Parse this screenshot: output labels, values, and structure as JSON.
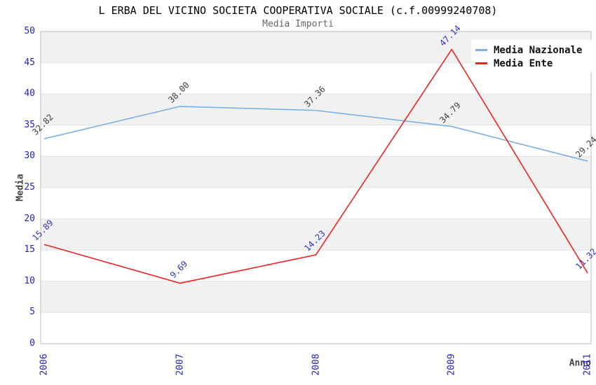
{
  "chart_data": {
    "type": "line",
    "title": "L ERBA DEL VICINO SOCIETA COOPERATIVA SOCIALE (c.f.00999240708)",
    "subtitle": "Media Importi",
    "xlabel": "Anno",
    "ylabel": "Media",
    "categories": [
      "2006",
      "2007",
      "2008",
      "2009",
      "2011"
    ],
    "series": [
      {
        "name": "Media Nazionale",
        "values": [
          32.82,
          38.0,
          37.36,
          34.79,
          29.24
        ],
        "labels": [
          "32.82",
          "38.00",
          "37.36",
          "34.79",
          "29.24"
        ],
        "color": "#7db0e3",
        "label_color": "#404040"
      },
      {
        "name": "Media Ente",
        "values": [
          15.89,
          9.69,
          14.23,
          47.14,
          11.32
        ],
        "labels": [
          "15.89",
          "9.69",
          "14.23",
          "47.14",
          "11.32"
        ],
        "color": "#ee2222",
        "label_color": "#2a35c4"
      }
    ],
    "ylim": [
      0,
      50
    ],
    "ytick_step": 5,
    "yticks": [
      "0",
      "5",
      "10",
      "15",
      "20",
      "25",
      "30",
      "35",
      "40",
      "45",
      "50"
    ],
    "grid": true,
    "legend_position": "top-right",
    "colors": {
      "tick_text": "#2222cc",
      "band_fill": "#f1f1f1",
      "gridline": "#e4e4e4",
      "plot_border": "#bdbdbd",
      "axis_title": "#444444",
      "title_text": "#000000",
      "subtitle_text": "#666666",
      "legend_bg": "#ffffff",
      "legend_text": "#111111"
    }
  }
}
